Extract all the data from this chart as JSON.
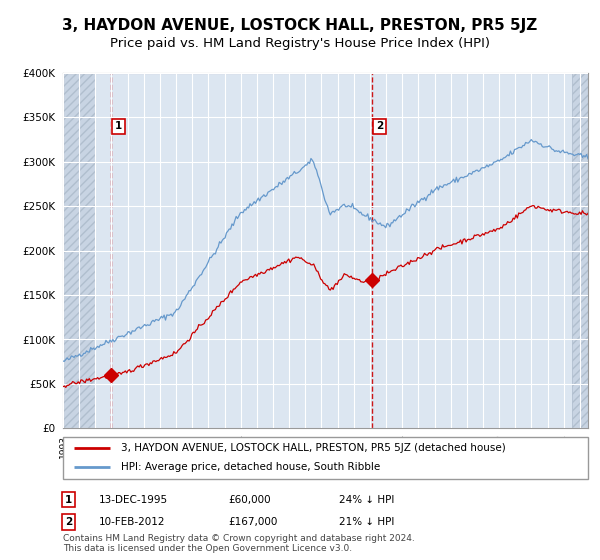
{
  "title": "3, HAYDON AVENUE, LOSTOCK HALL, PRESTON, PR5 5JZ",
  "subtitle": "Price paid vs. HM Land Registry's House Price Index (HPI)",
  "legend_line1": "3, HAYDON AVENUE, LOSTOCK HALL, PRESTON, PR5 5JZ (detached house)",
  "legend_line2": "HPI: Average price, detached house, South Ribble",
  "footnote": "Contains HM Land Registry data © Crown copyright and database right 2024.\nThis data is licensed under the Open Government Licence v3.0.",
  "annotation1_label": "1",
  "annotation1_date": "13-DEC-1995",
  "annotation1_price": "£60,000",
  "annotation1_hpi": "24% ↓ HPI",
  "annotation2_label": "2",
  "annotation2_date": "10-FEB-2012",
  "annotation2_price": "£167,000",
  "annotation2_hpi": "21% ↓ HPI",
  "sale1_x": 1995.96,
  "sale1_y": 60000,
  "sale2_x": 2012.11,
  "sale2_y": 167000,
  "vline1_x": 1995.96,
  "vline2_x": 2012.11,
  "ylim": [
    0,
    400000
  ],
  "xlim_start": 1993.0,
  "xlim_end": 2025.5,
  "red_color": "#cc0000",
  "blue_color": "#6699cc",
  "vline_color": "#cc0000",
  "bg_color": "#dce6f1",
  "hatch_bg_color": "#c8d4e3",
  "grid_color": "#ffffff",
  "title_fontsize": 11,
  "subtitle_fontsize": 9.5,
  "border_color": "#999999"
}
